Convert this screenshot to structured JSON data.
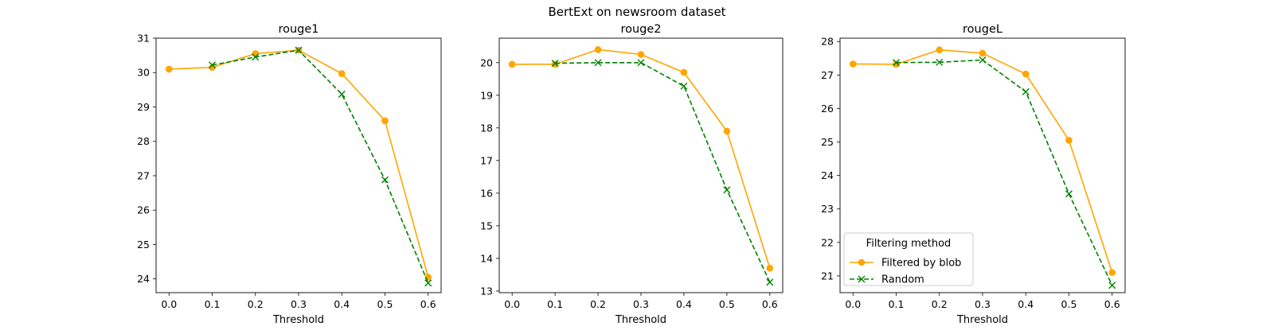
{
  "title": "BertExt on newsroom dataset",
  "colors": {
    "filtered": "#ffa500",
    "random": "#008000"
  },
  "legend": {
    "title": "Filtering method",
    "placement": "lower-left (third panel)",
    "entries": [
      "Filtered by blob",
      "Random"
    ]
  },
  "chart_data": [
    {
      "type": "line",
      "title": "rouge1",
      "xlabel": "Threshold",
      "ylabel": "",
      "xlim": [
        -0.03,
        0.63
      ],
      "ylim": [
        23.6,
        31.0
      ],
      "xticks": [
        "0.0",
        "0.1",
        "0.2",
        "0.3",
        "0.4",
        "0.5",
        "0.6"
      ],
      "yticks": [
        "24",
        "25",
        "26",
        "27",
        "28",
        "29",
        "30",
        "31"
      ],
      "series": [
        {
          "name": "Filtered by blob",
          "style": "solid, circle markers",
          "x": [
            0.0,
            0.1,
            0.2,
            0.3,
            0.4,
            0.5,
            0.6
          ],
          "y": [
            30.1,
            30.15,
            30.55,
            30.65,
            29.97,
            28.6,
            24.05
          ]
        },
        {
          "name": "Random",
          "style": "dashed, x markers",
          "x": [
            0.1,
            0.2,
            0.3,
            0.4,
            0.5,
            0.6
          ],
          "y": [
            30.22,
            30.45,
            30.65,
            29.37,
            26.88,
            23.88
          ]
        }
      ]
    },
    {
      "type": "line",
      "title": "rouge2",
      "xlabel": "Threshold",
      "ylabel": "",
      "xlim": [
        -0.03,
        0.63
      ],
      "ylim": [
        12.95,
        20.75
      ],
      "xticks": [
        "0.0",
        "0.1",
        "0.2",
        "0.3",
        "0.4",
        "0.5",
        "0.6"
      ],
      "yticks": [
        "13",
        "14",
        "15",
        "16",
        "17",
        "18",
        "19",
        "20"
      ],
      "series": [
        {
          "name": "Filtered by blob",
          "style": "solid, circle markers",
          "x": [
            0.0,
            0.1,
            0.2,
            0.3,
            0.4,
            0.5,
            0.6
          ],
          "y": [
            19.95,
            19.95,
            20.4,
            20.25,
            19.7,
            17.9,
            13.7
          ]
        },
        {
          "name": "Random",
          "style": "dashed, x markers",
          "x": [
            0.1,
            0.2,
            0.3,
            0.4,
            0.5,
            0.6
          ],
          "y": [
            19.98,
            20.0,
            20.0,
            19.28,
            16.1,
            13.27
          ]
        }
      ]
    },
    {
      "type": "line",
      "title": "rougeL",
      "xlabel": "Threshold",
      "ylabel": "",
      "xlim": [
        -0.03,
        0.63
      ],
      "ylim": [
        20.5,
        28.1
      ],
      "xticks": [
        "0.0",
        "0.1",
        "0.2",
        "0.3",
        "0.4",
        "0.5",
        "0.6"
      ],
      "yticks": [
        "21",
        "22",
        "23",
        "24",
        "25",
        "26",
        "27",
        "28"
      ],
      "series": [
        {
          "name": "Filtered by blob",
          "style": "solid, circle markers",
          "x": [
            0.0,
            0.1,
            0.2,
            0.3,
            0.4,
            0.5,
            0.6
          ],
          "y": [
            27.33,
            27.32,
            27.75,
            27.65,
            27.03,
            25.05,
            21.1
          ]
        },
        {
          "name": "Random",
          "style": "dashed, x markers",
          "x": [
            0.1,
            0.2,
            0.3,
            0.4,
            0.5,
            0.6
          ],
          "y": [
            27.37,
            27.38,
            27.45,
            26.5,
            23.45,
            20.72
          ]
        }
      ]
    }
  ]
}
